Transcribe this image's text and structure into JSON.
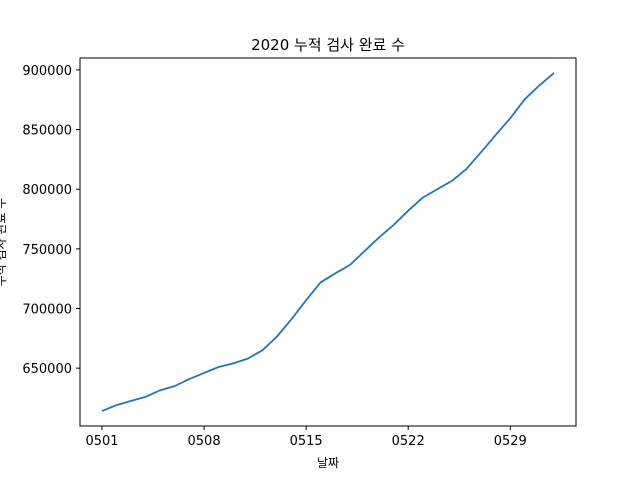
{
  "chart_data": {
    "type": "line",
    "title": "2020 누적 검사 완료 수",
    "xlabel": "날짜",
    "ylabel": "누적 검사 완료 수",
    "x": [
      "0501",
      "0502",
      "0503",
      "0504",
      "0505",
      "0506",
      "0507",
      "0508",
      "0509",
      "0510",
      "0511",
      "0512",
      "0513",
      "0514",
      "0515",
      "0516",
      "0517",
      "0518",
      "0519",
      "0520",
      "0521",
      "0522",
      "0523",
      "0524",
      "0525",
      "0526",
      "0527",
      "0528",
      "0529",
      "0530",
      "0531",
      "0601"
    ],
    "x_ticks": [
      "0501",
      "0508",
      "0515",
      "0522",
      "0529"
    ],
    "y_ticks": [
      650000,
      700000,
      750000,
      800000,
      850000,
      900000
    ],
    "ylim": [
      601500,
      910000
    ],
    "grid": false,
    "series": [
      {
        "color": "#1f77b4",
        "values": [
          614000,
          619000,
          622500,
          626000,
          631500,
          635000,
          641000,
          646000,
          651000,
          654000,
          658000,
          665000,
          676500,
          691000,
          707000,
          722000,
          729500,
          736500,
          748000,
          759500,
          770000,
          782000,
          793000,
          800000,
          807000,
          817000,
          831000,
          845500,
          859500,
          875500,
          887000,
          897500
        ]
      }
    ]
  }
}
